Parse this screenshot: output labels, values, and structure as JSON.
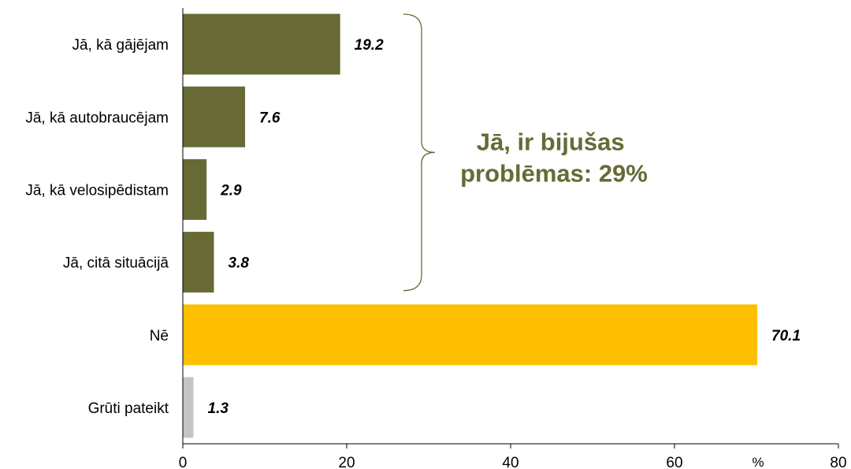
{
  "chart_data": {
    "type": "bar",
    "orientation": "horizontal",
    "categories": [
      "Jā, kā gājējam",
      "Jā, kā autobraucējam",
      "Jā, kā velosipēdistam",
      "Jā, citā situācijā",
      "Nē",
      "Grūti pateikt"
    ],
    "values": [
      19.2,
      7.6,
      2.9,
      3.8,
      70.1,
      1.3
    ],
    "value_labels": [
      "19.2",
      "7.6",
      "2.9",
      "3.8",
      "70.1",
      "1.3"
    ],
    "colors": [
      "#676a35",
      "#676a35",
      "#676a35",
      "#676a35",
      "#fdbf00",
      "#c4c4c4"
    ],
    "xlim": [
      0,
      80
    ],
    "xticks": [
      0,
      20,
      40,
      60,
      80
    ],
    "unit": "%",
    "grid": false,
    "annotation": {
      "lines": [
        "Jā, ir bijušas",
        "problēmas: 29%"
      ],
      "color": "#676a35",
      "brace_spans": [
        0,
        3
      ]
    }
  }
}
